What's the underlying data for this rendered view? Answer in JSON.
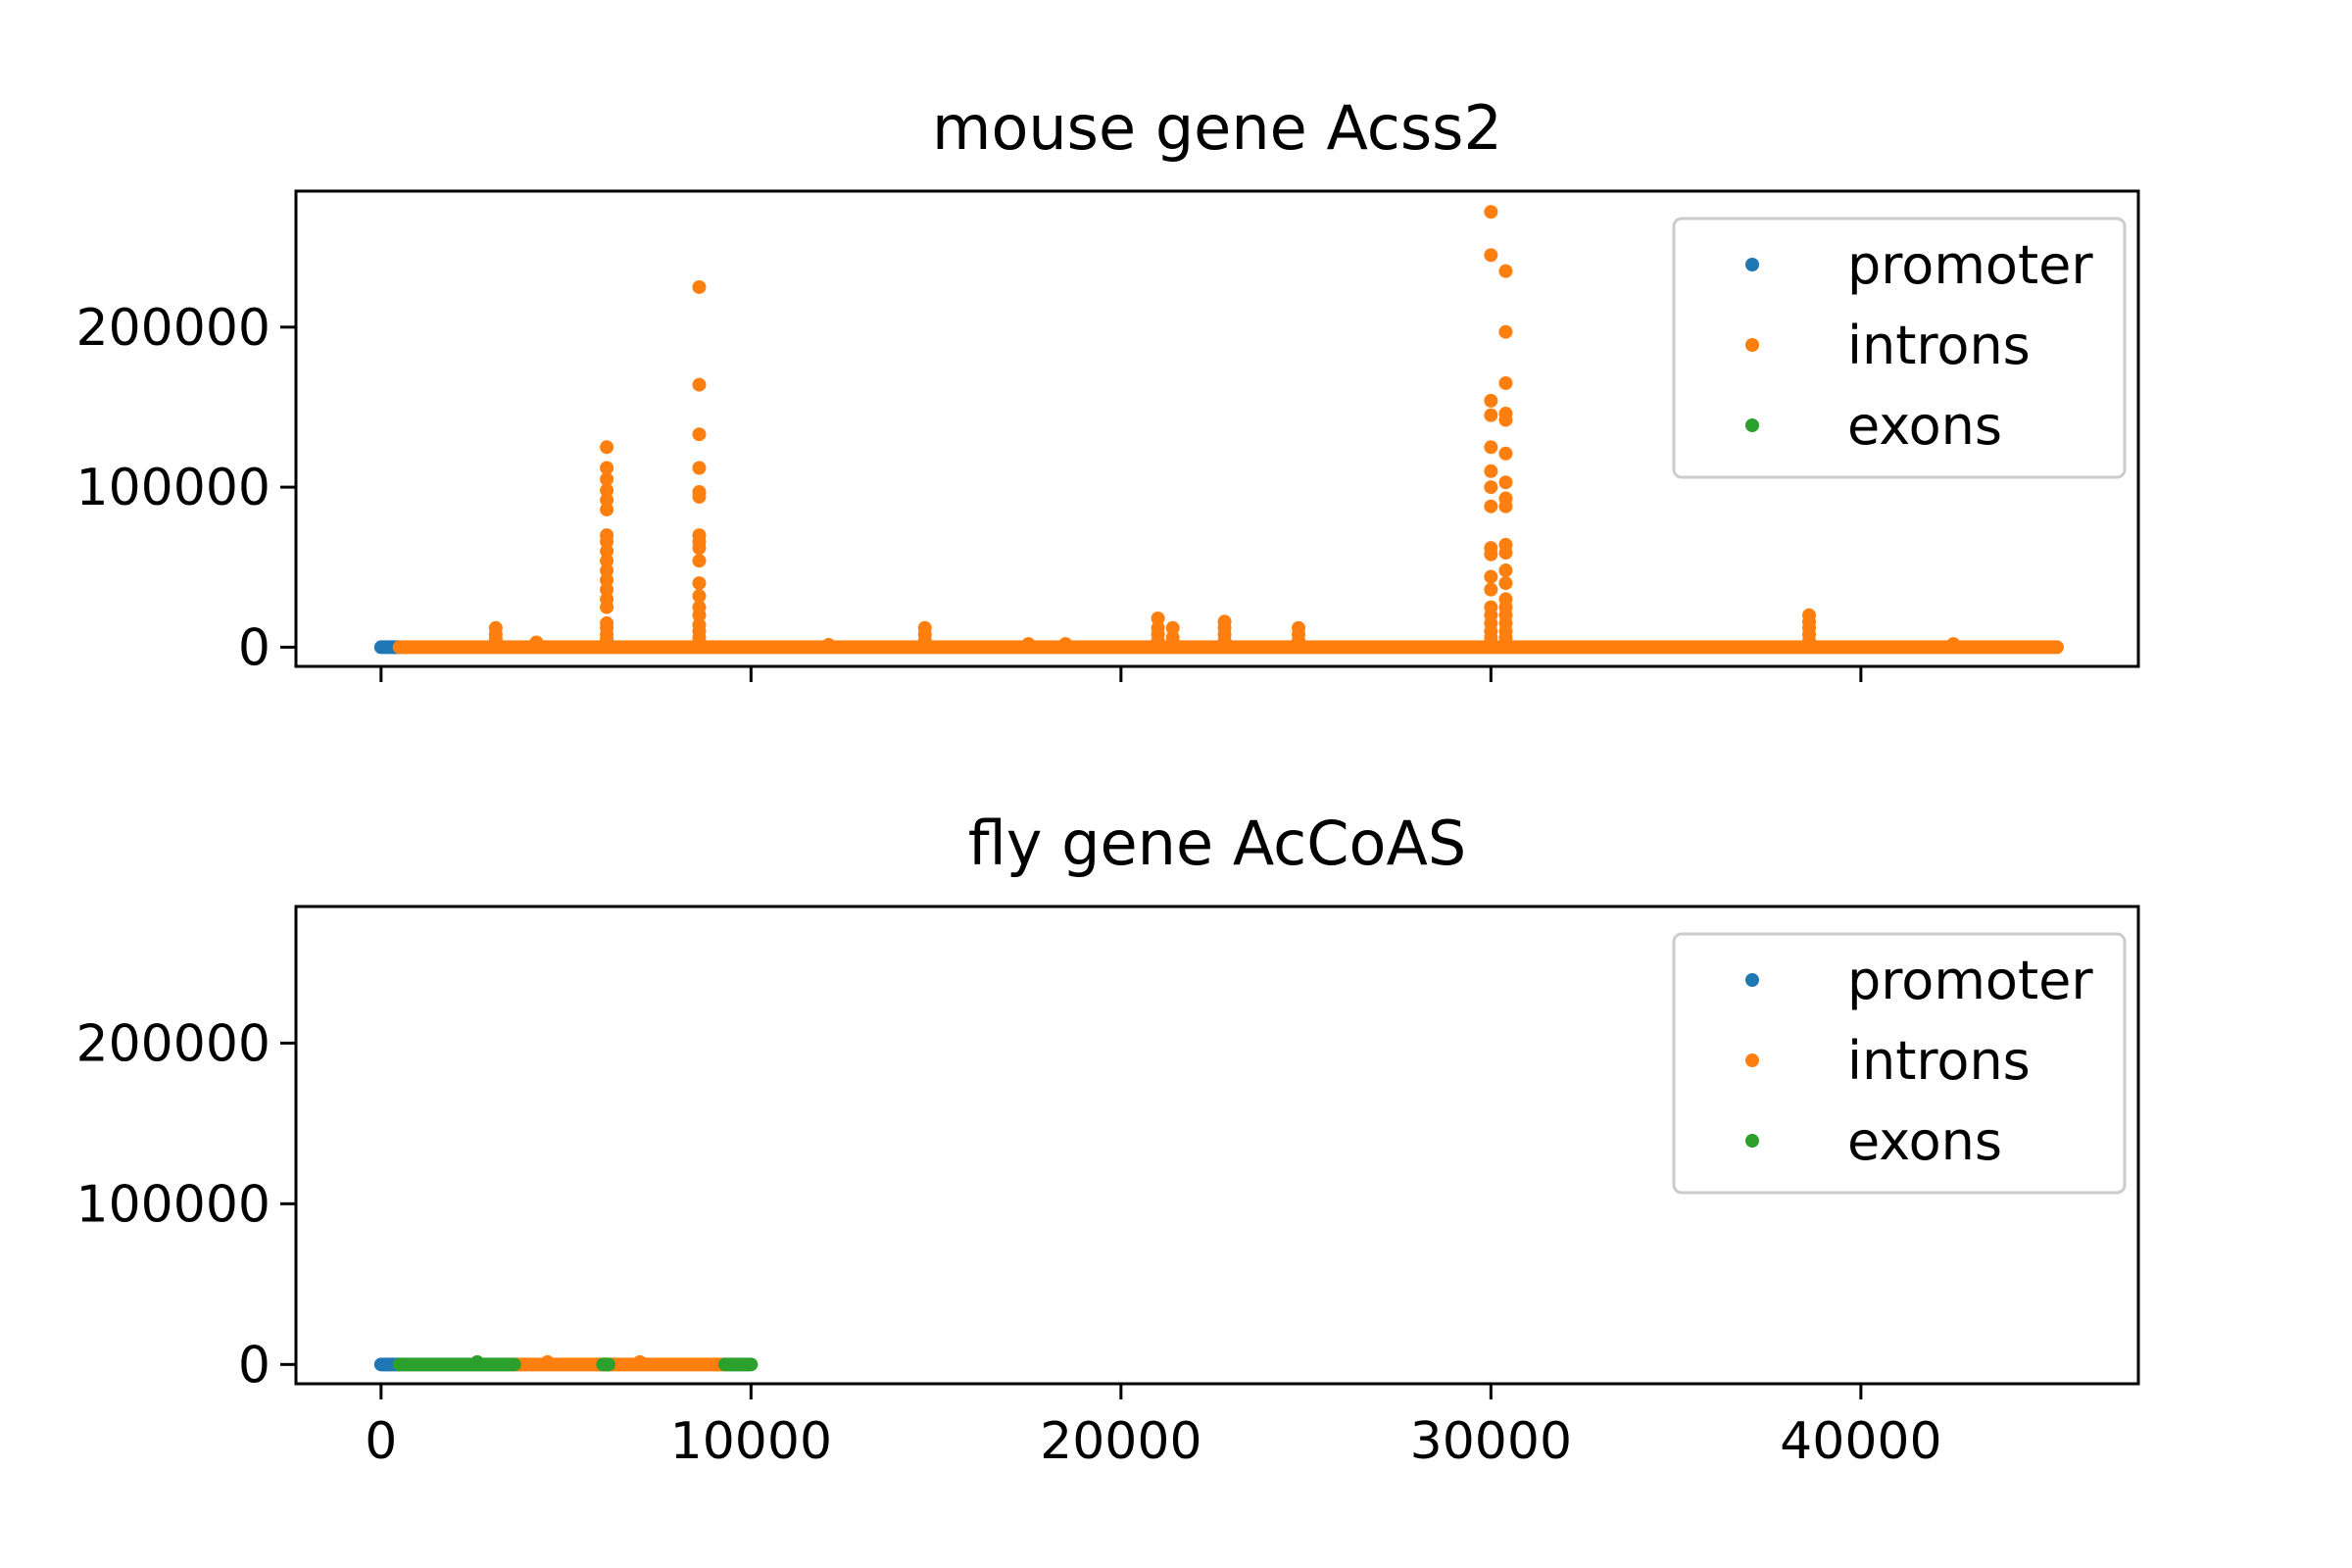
{
  "chart_data": [
    {
      "type": "scatter",
      "title": "mouse gene Acss2",
      "xlabel": "",
      "ylabel": "",
      "xlim": [
        -2300,
        47500
      ],
      "ylim": [
        -12000,
        285000
      ],
      "xticks": [
        0,
        10000,
        20000,
        30000,
        40000
      ],
      "xtick_labels_shown": false,
      "yticks": [
        0,
        100000,
        200000
      ],
      "ytick_labels": [
        "0",
        "100000",
        "200000"
      ],
      "legend": {
        "placement": "top-right",
        "entries": [
          "promoter",
          "introns",
          "exons"
        ]
      },
      "colors": {
        "promoter": "#1f77b4",
        "introns": "#ff7f0e",
        "exons": "#2ca02c"
      },
      "series": [
        {
          "name": "promoter",
          "segments": [
            [
              0,
              500
            ]
          ],
          "x": [],
          "y": []
        },
        {
          "name": "introns",
          "segments": [
            [
              500,
              45300
            ]
          ],
          "x": [
            3100,
            3100,
            3100,
            4200,
            6100,
            6100,
            6100,
            6100,
            6100,
            6100,
            6100,
            6100,
            6100,
            6100,
            6100,
            6100,
            6100,
            6100,
            6100,
            6100,
            6100,
            6100,
            6100,
            6100,
            8600,
            8600,
            8600,
            8600,
            8600,
            8600,
            8600,
            8600,
            8600,
            8600,
            8600,
            8600,
            8600,
            8600,
            8600,
            8600,
            8600,
            8600,
            12100,
            14700,
            14700,
            14700,
            17500,
            18500,
            21000,
            21000,
            21000,
            21000,
            21400,
            21400,
            22800,
            22800,
            22800,
            22800,
            24800,
            24800,
            24800,
            30000,
            30000,
            30000,
            30000,
            30000,
            30000,
            30000,
            30000,
            30000,
            30000,
            30000,
            30000,
            30000,
            30000,
            30000,
            30000,
            30000,
            30000,
            30400,
            30400,
            30400,
            30400,
            30400,
            30400,
            30400,
            30400,
            30400,
            30400,
            30400,
            30400,
            30400,
            30400,
            30400,
            30400,
            30400,
            30400,
            30400,
            30400,
            38600,
            38600,
            38600,
            38600,
            38600,
            42500
          ],
          "y": [
            12000,
            8000,
            5000,
            3000,
            125000,
            112000,
            105000,
            98000,
            92000,
            86000,
            70000,
            66000,
            60000,
            54000,
            48000,
            42000,
            36000,
            30000,
            25000,
            15000,
            12000,
            8000,
            5000,
            3000,
            225000,
            164000,
            133000,
            112000,
            97000,
            94000,
            70000,
            66000,
            62000,
            54000,
            40000,
            32000,
            25000,
            20000,
            14000,
            10000,
            6000,
            3000,
            1500,
            12000,
            8000,
            4000,
            2000,
            2000,
            18000,
            12000,
            8000,
            4000,
            12000,
            6000,
            16000,
            12000,
            8000,
            4000,
            12000,
            8000,
            4000,
            272000,
            245000,
            154000,
            145000,
            125000,
            110000,
            100000,
            88000,
            62000,
            58000,
            44000,
            36000,
            25000,
            20000,
            15000,
            10000,
            6000,
            3000,
            235000,
            197000,
            165000,
            146000,
            142000,
            121000,
            103000,
            93000,
            88000,
            64000,
            59000,
            48000,
            40000,
            30000,
            25000,
            20000,
            15000,
            10000,
            6000,
            3000,
            20000,
            16000,
            12000,
            8000,
            4000,
            2000
          ]
        },
        {
          "name": "exons",
          "segments": [],
          "x": [],
          "y": []
        }
      ]
    },
    {
      "type": "scatter",
      "title": "fly gene AcCoAS",
      "xlabel": "",
      "ylabel": "",
      "xlim": [
        -2300,
        47500
      ],
      "ylim": [
        -12000,
        285000
      ],
      "xticks": [
        0,
        10000,
        20000,
        30000,
        40000
      ],
      "xtick_labels": [
        "0",
        "10000",
        "20000",
        "30000",
        "40000"
      ],
      "yticks": [
        0,
        100000,
        200000
      ],
      "ytick_labels": [
        "0",
        "100000",
        "200000"
      ],
      "legend": {
        "placement": "top-right",
        "entries": [
          "promoter",
          "introns",
          "exons"
        ]
      },
      "colors": {
        "promoter": "#1f77b4",
        "introns": "#ff7f0e",
        "exons": "#2ca02c"
      },
      "series": [
        {
          "name": "promoter",
          "segments": [
            [
              0,
              500
            ]
          ],
          "x": [],
          "y": []
        },
        {
          "name": "introns",
          "segments": [
            [
              3600,
              9300
            ]
          ],
          "x": [
            4500,
            7000
          ],
          "y": [
            1500,
            1500
          ]
        },
        {
          "name": "exons",
          "segments": [
            [
              500,
              3600
            ],
            [
              6000,
              6150
            ],
            [
              9300,
              10000
            ]
          ],
          "x": [
            2600
          ],
          "y": [
            1500
          ]
        }
      ]
    }
  ]
}
